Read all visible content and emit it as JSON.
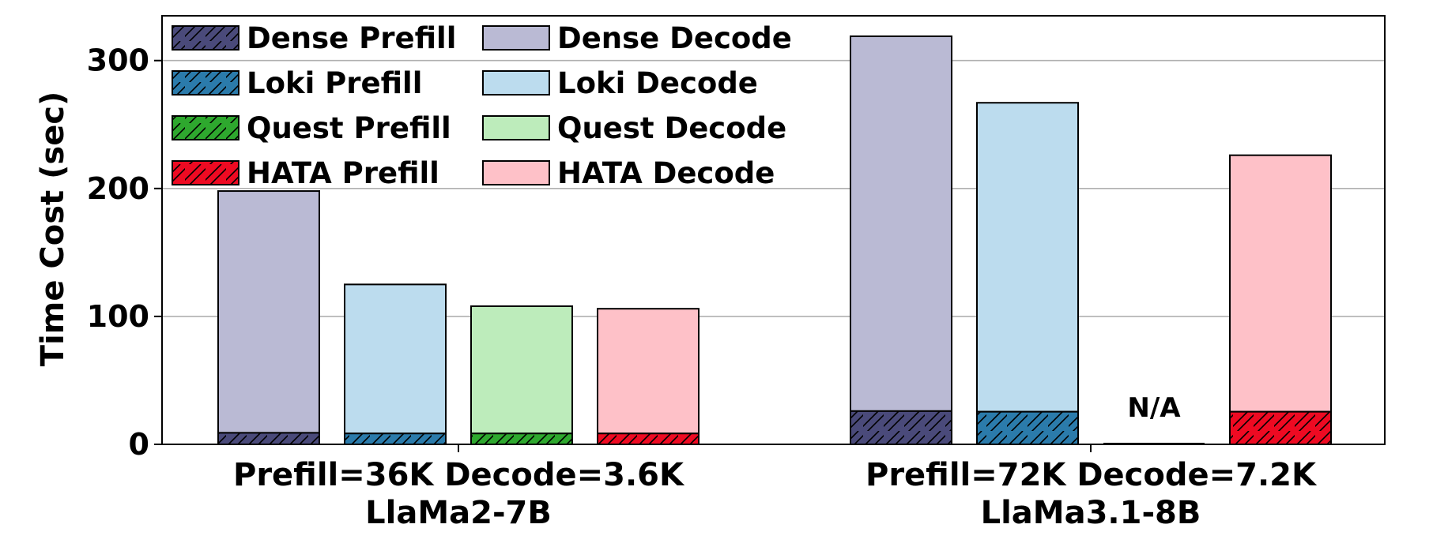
{
  "chart_data": {
    "type": "bar",
    "stacked": true,
    "title": "",
    "ylabel": "Time Cost (sec)",
    "ylim": [
      0,
      335
    ],
    "yticks": [
      0,
      100,
      200,
      300
    ],
    "grid": "horizontal",
    "legend_position": "top-left",
    "groups": [
      {
        "label_line1": "Prefill=36K Decode=3.6K",
        "label_line2": "LlaMa2-7B"
      },
      {
        "label_line1": "Prefill=72K Decode=7.2K",
        "label_line2": "LlaMa3.1-8B"
      }
    ],
    "methods": [
      {
        "name": "Dense",
        "prefill_label": "Dense Prefill",
        "decode_label": "Dense Decode",
        "prefill_color": "#4a4a7a",
        "decode_color": "#babad4",
        "values": [
          {
            "prefill": 9,
            "decode": 189
          },
          {
            "prefill": 26,
            "decode": 293
          }
        ]
      },
      {
        "name": "Loki",
        "prefill_label": "Loki Prefill",
        "decode_label": "Loki Decode",
        "prefill_color": "#2b7bab",
        "decode_color": "#bcdcee",
        "values": [
          {
            "prefill": 8.5,
            "decode": 116.5
          },
          {
            "prefill": 25.5,
            "decode": 241.5
          }
        ]
      },
      {
        "name": "Quest",
        "prefill_label": "Quest Prefill",
        "decode_label": "Quest Decode",
        "prefill_color": "#2ea82e",
        "decode_color": "#bdecbb",
        "values": [
          {
            "prefill": 8.5,
            "decode": 99.5
          },
          null
        ]
      },
      {
        "name": "HATA",
        "prefill_label": "HATA Prefill",
        "decode_label": "HATA Decode",
        "prefill_color": "#ee0a22",
        "decode_color": "#fec1c8",
        "values": [
          {
            "prefill": 8.5,
            "decode": 97.5
          },
          {
            "prefill": 25.5,
            "decode": 200.5
          }
        ]
      }
    ],
    "annotations": [
      {
        "text": "N/A",
        "group": 1,
        "method": 2
      }
    ]
  }
}
